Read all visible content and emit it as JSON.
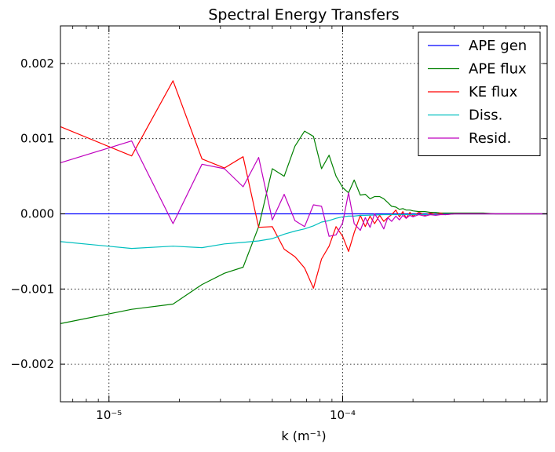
{
  "chart_data": {
    "type": "line",
    "title": "Spectral Energy Transfers",
    "xlabel": "k (m⁻¹)",
    "ylabel": "",
    "xscale": "log",
    "xlim": [
      6.2e-06,
      0.00075
    ],
    "ylim": [
      -0.0025,
      0.0025
    ],
    "grid": true,
    "legend_position": "top-right",
    "x_ticks": [
      {
        "value": 1e-05,
        "label": "10⁻⁵"
      },
      {
        "value": 0.0001,
        "label": "10⁻⁴"
      }
    ],
    "y_ticks": [
      {
        "value": -0.002,
        "label": "−0.002"
      },
      {
        "value": -0.001,
        "label": "−0.001"
      },
      {
        "value": 0.0,
        "label": "0.000"
      },
      {
        "value": 0.001,
        "label": "0.001"
      },
      {
        "value": 0.002,
        "label": "0.002"
      }
    ],
    "series": [
      {
        "name": "APE gen",
        "color": "#0000ff",
        "x": [
          6.2e-06,
          0.00075
        ],
        "y": [
          0.0,
          0.0
        ]
      },
      {
        "name": "APE flux",
        "color": "#008000",
        "x": [
          6.2e-06,
          1.25e-05,
          1.88e-05,
          2.5e-05,
          3.12e-05,
          3.75e-05,
          4.37e-05,
          5e-05,
          5.62e-05,
          6.25e-05,
          6.87e-05,
          7.5e-05,
          8.12e-05,
          8.75e-05,
          9.37e-05,
          0.0001,
          0.000106,
          0.000112,
          0.000119,
          0.000125,
          0.000131,
          0.000137,
          0.000144,
          0.00015,
          0.000156,
          0.000162,
          0.000169,
          0.000175,
          0.000181,
          0.000187,
          0.000194,
          0.0002,
          0.000212,
          0.000225,
          0.000237,
          0.00025,
          0.000262,
          0.000275,
          0.0003,
          0.000325,
          0.00035,
          0.0004,
          0.00045,
          0.0005,
          0.0006,
          0.00075
        ],
        "y": [
          -0.00146,
          -0.00127,
          -0.0012,
          -0.00094,
          -0.00079,
          -0.00071,
          -0.00017,
          0.0006,
          0.0005,
          0.0009,
          0.0011,
          0.00103,
          0.0006,
          0.00078,
          0.0005,
          0.00035,
          0.00028,
          0.00045,
          0.00025,
          0.00026,
          0.0002,
          0.00023,
          0.00023,
          0.0002,
          0.00015,
          0.0001,
          9e-05,
          6e-05,
          7e-05,
          5e-05,
          5e-05,
          4e-05,
          3e-05,
          3e-05,
          2e-05,
          2e-05,
          1e-05,
          1e-05,
          1e-05,
          1e-05,
          1e-05,
          1e-05,
          0.0,
          0.0,
          0.0,
          0.0
        ]
      },
      {
        "name": "KE flux",
        "color": "#ff0000",
        "x": [
          6.2e-06,
          1.25e-05,
          1.88e-05,
          2.5e-05,
          3.12e-05,
          3.75e-05,
          4.37e-05,
          5e-05,
          5.62e-05,
          6.25e-05,
          6.87e-05,
          7.5e-05,
          8.12e-05,
          8.75e-05,
          9.37e-05,
          0.0001,
          0.000106,
          0.000112,
          0.000119,
          0.000125,
          0.000131,
          0.000137,
          0.000144,
          0.00015,
          0.000156,
          0.000162,
          0.000169,
          0.000175,
          0.000181,
          0.000187,
          0.000194,
          0.0002,
          0.000212,
          0.000225,
          0.000237,
          0.00025,
          0.000262,
          0.000275,
          0.0003,
          0.000325,
          0.00035,
          0.0004,
          0.00045,
          0.0005,
          0.0006,
          0.00075
        ],
        "y": [
          0.00116,
          0.00077,
          0.00177,
          0.00073,
          0.00061,
          0.00076,
          -0.00018,
          -0.00017,
          -0.00047,
          -0.00057,
          -0.00072,
          -0.00099,
          -0.0006,
          -0.00043,
          -0.00017,
          -0.0003,
          -0.0005,
          -0.00025,
          -2e-05,
          -0.00017,
          -3e-05,
          -0.00013,
          -2e-05,
          -0.0001,
          -5e-05,
          -1e-05,
          5e-05,
          -4e-05,
          3e-05,
          -6e-05,
          2e-05,
          -3e-05,
          2e-05,
          -2e-05,
          1e-05,
          -1e-05,
          1e-05,
          -1e-05,
          0.0,
          0.0,
          0.0,
          0.0,
          0.0,
          0.0,
          0.0,
          0.0
        ]
      },
      {
        "name": "Diss.",
        "color": "#00bfbf",
        "x": [
          6.2e-06,
          1.25e-05,
          1.88e-05,
          2.5e-05,
          3.12e-05,
          3.75e-05,
          4.37e-05,
          5e-05,
          5.62e-05,
          6.25e-05,
          6.87e-05,
          7.5e-05,
          8.12e-05,
          8.75e-05,
          9.37e-05,
          0.0001,
          0.000106,
          0.000112,
          0.000119,
          0.000125,
          0.00015,
          0.000175,
          0.0002,
          0.00025,
          0.0003,
          0.0004,
          0.0005,
          0.0006,
          0.00075
        ],
        "y": [
          -0.00037,
          -0.00046,
          -0.00043,
          -0.00045,
          -0.0004,
          -0.00038,
          -0.00036,
          -0.00033,
          -0.00027,
          -0.00023,
          -0.0002,
          -0.00016,
          -0.00011,
          -9e-05,
          -6e-05,
          -4e-05,
          -3e-05,
          -3e-05,
          -2e-05,
          -2e-05,
          -1e-05,
          -1e-05,
          -1e-05,
          -1e-05,
          0.0,
          0.0,
          0.0,
          0.0,
          0.0
        ]
      },
      {
        "name": "Resid.",
        "color": "#bf00bf",
        "x": [
          6.2e-06,
          1.25e-05,
          1.88e-05,
          2.5e-05,
          3.12e-05,
          3.75e-05,
          4.37e-05,
          5e-05,
          5.62e-05,
          6.25e-05,
          6.87e-05,
          7.5e-05,
          8.12e-05,
          8.75e-05,
          9.37e-05,
          0.0001,
          0.000106,
          0.000112,
          0.000119,
          0.000125,
          0.000131,
          0.000137,
          0.000144,
          0.00015,
          0.000156,
          0.000162,
          0.000169,
          0.000175,
          0.000181,
          0.000187,
          0.000194,
          0.0002,
          0.000212,
          0.000225,
          0.000237,
          0.00025,
          0.000262,
          0.000275,
          0.0003,
          0.000325,
          0.00035,
          0.0004,
          0.00045,
          0.0005,
          0.0006,
          0.00075
        ],
        "y": [
          0.00068,
          0.00097,
          -0.00013,
          0.00066,
          0.0006,
          0.00036,
          0.00075,
          -8e-05,
          0.00026,
          -9e-05,
          -0.00017,
          0.00012,
          0.0001,
          -0.0003,
          -0.00028,
          -0.00012,
          0.00028,
          -0.00013,
          -0.00022,
          -5e-05,
          -0.00018,
          0.0,
          -0.0001,
          -0.0002,
          -5e-05,
          -0.0001,
          -3e-05,
          -8e-05,
          -2e-05,
          -6e-05,
          -2e-05,
          -4e-05,
          -1e-05,
          -3e-05,
          -1e-05,
          -2e-05,
          -1e-05,
          -1e-05,
          0.0,
          0.0,
          0.0,
          0.0,
          0.0,
          0.0,
          0.0,
          0.0
        ]
      }
    ]
  }
}
